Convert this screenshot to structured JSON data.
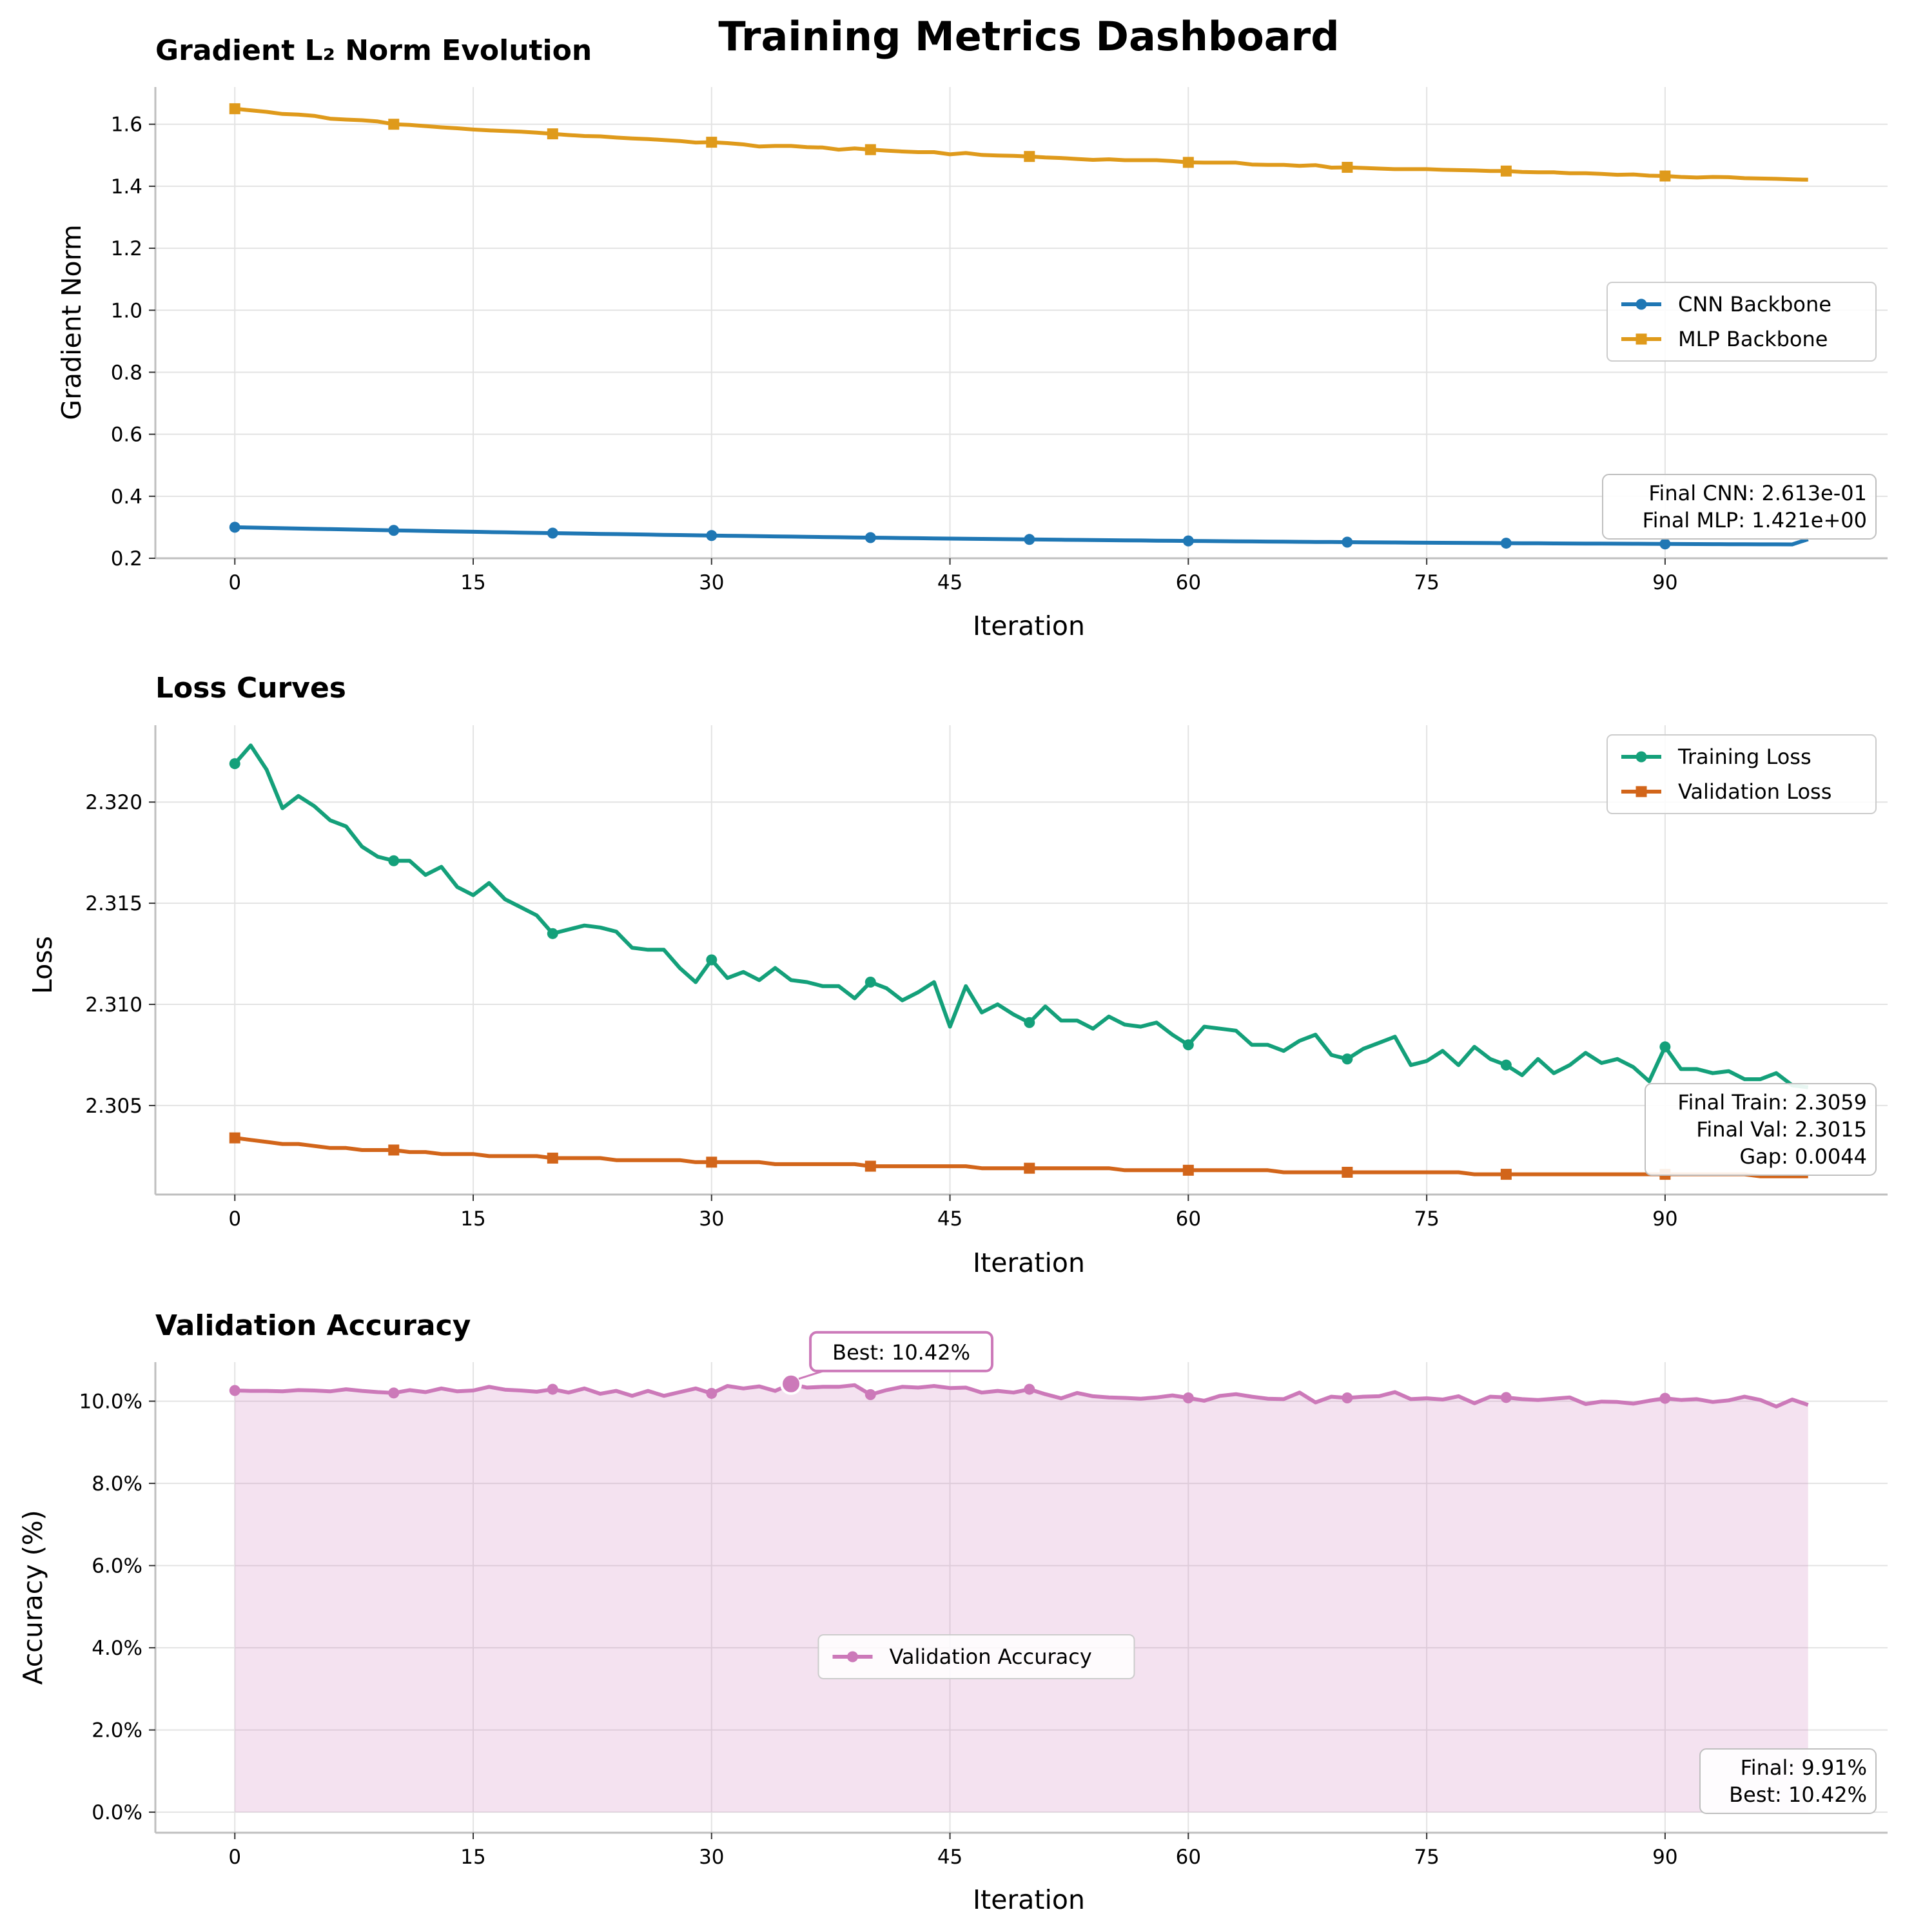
{
  "suptitle": "Training Metrics Dashboard",
  "colors": {
    "cnn": "#1f77b4",
    "mlp": "#df9a1b",
    "train": "#14a07a",
    "val": "#d2651a",
    "acc": "#cc79b9",
    "grid": "#e3e3e3"
  },
  "chart_data": [
    {
      "type": "line",
      "title": "Gradient L₂ Norm Evolution",
      "xlabel": "Iteration",
      "ylabel": "Gradient Norm",
      "xlim": [
        -5,
        104
      ],
      "ylim": [
        0.2,
        1.72
      ],
      "xticks": [
        0,
        15,
        30,
        45,
        60,
        75,
        90
      ],
      "xtick_labels": [
        "0",
        "15",
        "30",
        "45",
        "60",
        "75",
        "90"
      ],
      "yticks": [
        0.2,
        0.4,
        0.6,
        0.8,
        1.0,
        1.2,
        1.4,
        1.6
      ],
      "ytick_labels": [
        "0.2",
        "0.4",
        "0.6",
        "0.8",
        "1.0",
        "1.2",
        "1.4",
        "1.6"
      ],
      "grid": true,
      "legend_position": "center-right",
      "series": [
        {
          "name": "CNN Backbone",
          "color_key": "cnn",
          "marker": "circle",
          "markevery": 10,
          "x_start": 0,
          "x_step": 1,
          "values": [
            0.3,
            0.2989,
            0.2979,
            0.2969,
            0.2959,
            0.2949,
            0.2939,
            0.2929,
            0.292,
            0.291,
            0.29,
            0.2891,
            0.2881,
            0.2872,
            0.2863,
            0.2854,
            0.2845,
            0.2837,
            0.2828,
            0.2819,
            0.2811,
            0.2803,
            0.2795,
            0.2787,
            0.2779,
            0.2771,
            0.2763,
            0.2755,
            0.2748,
            0.274,
            0.2733,
            0.2726,
            0.2719,
            0.2712,
            0.2705,
            0.2698,
            0.2691,
            0.2684,
            0.2678,
            0.2671,
            0.2665,
            0.2659,
            0.2653,
            0.2647,
            0.2641,
            0.2635,
            0.2629,
            0.2624,
            0.2618,
            0.2613,
            0.2607,
            0.2602,
            0.2597,
            0.2592,
            0.2587,
            0.2582,
            0.2577,
            0.2573,
            0.2568,
            0.2563,
            0.2559,
            0.2555,
            0.255,
            0.2546,
            0.2542,
            0.2538,
            0.2534,
            0.253,
            0.2527,
            0.2523,
            0.2519,
            0.2516,
            0.2512,
            0.2509,
            0.2506,
            0.2502,
            0.2499,
            0.2496,
            0.2493,
            0.249,
            0.2487,
            0.2485,
            0.2482,
            0.2479,
            0.2477,
            0.2474,
            0.2472,
            0.2469,
            0.2467,
            0.2465,
            0.2463,
            0.246,
            0.2458,
            0.2456,
            0.2454,
            0.2452,
            0.245,
            0.2449,
            0.2447,
            0.2613
          ]
        },
        {
          "name": "MLP Backbone",
          "color_key": "mlp",
          "marker": "square",
          "markevery": 10,
          "x_start": 0,
          "x_step": 1,
          "values": [
            1.65,
            1.645,
            1.64,
            1.633,
            1.631,
            1.627,
            1.618,
            1.615,
            1.613,
            1.609,
            1.6,
            1.598,
            1.594,
            1.59,
            1.587,
            1.583,
            1.58,
            1.578,
            1.576,
            1.573,
            1.569,
            1.565,
            1.562,
            1.561,
            1.557,
            1.554,
            1.552,
            1.549,
            1.546,
            1.541,
            1.542,
            1.539,
            1.535,
            1.528,
            1.53,
            1.53,
            1.526,
            1.525,
            1.518,
            1.522,
            1.518,
            1.515,
            1.512,
            1.51,
            1.51,
            1.503,
            1.507,
            1.501,
            1.499,
            1.498,
            1.496,
            1.493,
            1.491,
            1.488,
            1.485,
            1.487,
            1.484,
            1.484,
            1.484,
            1.481,
            1.477,
            1.476,
            1.476,
            1.476,
            1.47,
            1.469,
            1.469,
            1.466,
            1.468,
            1.46,
            1.461,
            1.459,
            1.457,
            1.455,
            1.455,
            1.455,
            1.453,
            1.452,
            1.451,
            1.449,
            1.449,
            1.446,
            1.445,
            1.445,
            1.442,
            1.442,
            1.44,
            1.437,
            1.438,
            1.434,
            1.433,
            1.43,
            1.428,
            1.43,
            1.429,
            1.426,
            1.425,
            1.424,
            1.422,
            1.421
          ]
        }
      ],
      "summary_box": [
        "Final CNN: 2.613e-01",
        "Final MLP: 1.421e+00"
      ]
    },
    {
      "type": "line",
      "title": "Loss Curves",
      "xlabel": "Iteration",
      "ylabel": "Loss",
      "xlim": [
        -5,
        104
      ],
      "ylim": [
        2.3006,
        2.3238
      ],
      "xticks": [
        0,
        15,
        30,
        45,
        60,
        75,
        90
      ],
      "xtick_labels": [
        "0",
        "15",
        "30",
        "45",
        "60",
        "75",
        "90"
      ],
      "yticks": [
        2.305,
        2.31,
        2.315,
        2.32
      ],
      "ytick_labels": [
        "2.305",
        "2.310",
        "2.315",
        "2.320"
      ],
      "grid": true,
      "legend_position": "upper-right",
      "series": [
        {
          "name": "Training Loss",
          "color_key": "train",
          "marker": "circle",
          "markevery": 10,
          "x_start": 0,
          "x_step": 1,
          "values": [
            2.3219,
            2.3228,
            2.3216,
            2.3197,
            2.3203,
            2.3198,
            2.3191,
            2.3188,
            2.3178,
            2.3173,
            2.3171,
            2.3171,
            2.3164,
            2.3168,
            2.3158,
            2.3154,
            2.316,
            2.3152,
            2.3148,
            2.3144,
            2.3135,
            2.3137,
            2.3139,
            2.3138,
            2.3136,
            2.3128,
            2.3127,
            2.3127,
            2.3118,
            2.3111,
            2.3122,
            2.3113,
            2.3116,
            2.3112,
            2.3118,
            2.3112,
            2.3111,
            2.3109,
            2.3109,
            2.3103,
            2.3111,
            2.3108,
            2.3102,
            2.3106,
            2.3111,
            2.3089,
            2.3109,
            2.3096,
            2.31,
            2.3095,
            2.3091,
            2.3099,
            2.3092,
            2.3092,
            2.3088,
            2.3094,
            2.309,
            2.3089,
            2.3091,
            2.3085,
            2.308,
            2.3089,
            2.3088,
            2.3087,
            2.308,
            2.308,
            2.3077,
            2.3082,
            2.3085,
            2.3075,
            2.3073,
            2.3078,
            2.3081,
            2.3084,
            2.307,
            2.3072,
            2.3077,
            2.307,
            2.3079,
            2.3073,
            2.307,
            2.3065,
            2.3073,
            2.3066,
            2.307,
            2.3076,
            2.3071,
            2.3073,
            2.3069,
            2.3062,
            2.3079,
            2.3068,
            2.3068,
            2.3066,
            2.3067,
            2.3063,
            2.3063,
            2.3066,
            2.306,
            2.3059
          ]
        },
        {
          "name": "Validation Loss",
          "color_key": "val",
          "marker": "square",
          "markevery": 10,
          "x_start": 0,
          "x_step": 1,
          "values": [
            2.3034,
            2.3033,
            2.3032,
            2.3031,
            2.3031,
            2.303,
            2.3029,
            2.3029,
            2.3028,
            2.3028,
            2.3028,
            2.3027,
            2.3027,
            2.3026,
            2.3026,
            2.3026,
            2.3025,
            2.3025,
            2.3025,
            2.3025,
            2.3024,
            2.3024,
            2.3024,
            2.3024,
            2.3023,
            2.3023,
            2.3023,
            2.3023,
            2.3023,
            2.3022,
            2.3022,
            2.3022,
            2.3022,
            2.3022,
            2.3021,
            2.3021,
            2.3021,
            2.3021,
            2.3021,
            2.3021,
            2.302,
            2.302,
            2.302,
            2.302,
            2.302,
            2.302,
            2.302,
            2.3019,
            2.3019,
            2.3019,
            2.3019,
            2.3019,
            2.3019,
            2.3019,
            2.3019,
            2.3019,
            2.3018,
            2.3018,
            2.3018,
            2.3018,
            2.3018,
            2.3018,
            2.3018,
            2.3018,
            2.3018,
            2.3018,
            2.3017,
            2.3017,
            2.3017,
            2.3017,
            2.3017,
            2.3017,
            2.3017,
            2.3017,
            2.3017,
            2.3017,
            2.3017,
            2.3017,
            2.3016,
            2.3016,
            2.3016,
            2.3016,
            2.3016,
            2.3016,
            2.3016,
            2.3016,
            2.3016,
            2.3016,
            2.3016,
            2.3016,
            2.3016,
            2.3016,
            2.3016,
            2.3016,
            2.3016,
            2.3016,
            2.3015,
            2.3015,
            2.3015,
            2.3015
          ]
        }
      ],
      "summary_box": [
        "Final Train: 2.3059",
        "Final Val: 2.3015",
        "Gap: 0.0044"
      ]
    },
    {
      "type": "area",
      "title": "Validation Accuracy",
      "xlabel": "Iteration",
      "ylabel": "Accuracy (%)",
      "xlim": [
        -5,
        104
      ],
      "ylim": [
        -0.5,
        10.95
      ],
      "xticks": [
        0,
        15,
        30,
        45,
        60,
        75,
        90
      ],
      "xtick_labels": [
        "0",
        "15",
        "30",
        "45",
        "60",
        "75",
        "90"
      ],
      "yticks": [
        0,
        2,
        4,
        6,
        8,
        10
      ],
      "ytick_labels": [
        "0.0%",
        "2.0%",
        "4.0%",
        "6.0%",
        "8.0%",
        "10.0%"
      ],
      "grid": true,
      "legend_position": "center",
      "series": [
        {
          "name": "Validation Accuracy",
          "color_key": "acc",
          "marker": "circle",
          "markevery": 10,
          "x_start": 0,
          "x_step": 1,
          "fill": true,
          "values": [
            10.26,
            10.25,
            10.25,
            10.24,
            10.27,
            10.26,
            10.24,
            10.29,
            10.25,
            10.22,
            10.2,
            10.27,
            10.22,
            10.31,
            10.24,
            10.26,
            10.35,
            10.28,
            10.26,
            10.23,
            10.29,
            10.21,
            10.31,
            10.18,
            10.25,
            10.13,
            10.25,
            10.13,
            10.22,
            10.31,
            10.19,
            10.37,
            10.31,
            10.36,
            10.25,
            10.42,
            10.33,
            10.35,
            10.35,
            10.39,
            10.16,
            10.27,
            10.35,
            10.33,
            10.37,
            10.32,
            10.33,
            10.21,
            10.25,
            10.21,
            10.29,
            10.17,
            10.07,
            10.2,
            10.12,
            10.09,
            10.08,
            10.06,
            10.09,
            10.14,
            10.08,
            10.01,
            10.13,
            10.17,
            10.11,
            10.06,
            10.05,
            10.21,
            9.97,
            10.11,
            10.08,
            10.11,
            10.12,
            10.22,
            10.05,
            10.07,
            10.04,
            10.12,
            9.95,
            10.11,
            10.09,
            10.05,
            10.03,
            10.06,
            10.09,
            9.93,
            9.99,
            9.98,
            9.94,
            10.01,
            10.07,
            10.03,
            10.05,
            9.98,
            10.02,
            10.11,
            10.03,
            9.87,
            10.04,
            9.91
          ]
        }
      ],
      "annotation": {
        "text": "Best: 10.42%",
        "x": 35,
        "y": 10.42
      },
      "summary_box": [
        "Final: 9.91%",
        "Best: 10.42%"
      ]
    }
  ]
}
